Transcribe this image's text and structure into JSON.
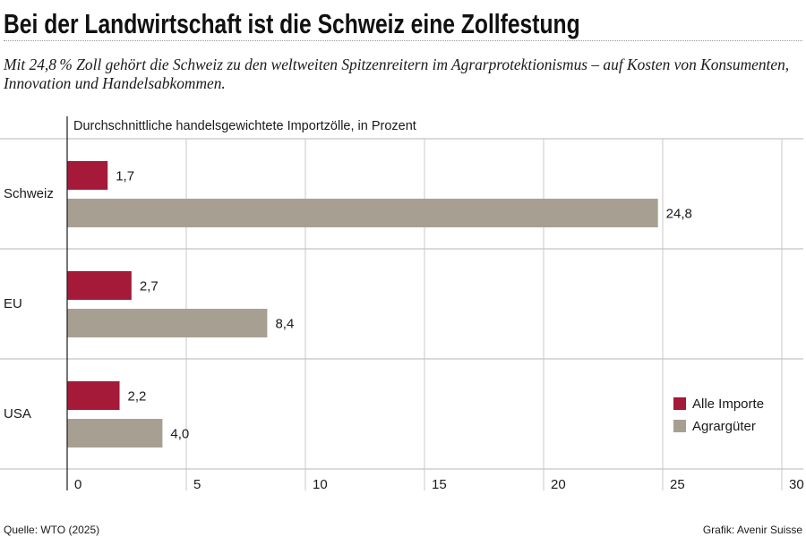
{
  "chart_data": {
    "type": "bar",
    "title": "Bei der Landwirtschaft ist die Schweiz eine Zollfestung",
    "subtitle": "Mit 24,8 % Zoll gehört die Schweiz zu den weltweiten Spitzenreitern im Agrarprotektionismus – auf Kosten von Konsumenten, Innovation und Handelsabkommen.",
    "xlabel": "Durchschnittliche handelsgewichtete Importzölle, in Prozent",
    "categories": [
      "Schweiz",
      "EU",
      "USA"
    ],
    "series": [
      {
        "name": "Alle Importe",
        "color": "#a51939",
        "values": [
          1.7,
          2.7,
          2.2
        ],
        "labels": [
          "1,7",
          "2,7",
          "2,2"
        ]
      },
      {
        "name": "Agrargüter",
        "color": "#a89f93",
        "values": [
          24.8,
          8.4,
          4.0
        ],
        "labels": [
          "24,8",
          "8,4",
          "4,0"
        ]
      }
    ],
    "xlim": [
      0,
      30
    ],
    "xticks": [
      0,
      5,
      10,
      15,
      20,
      25,
      30
    ],
    "grid": true,
    "legend": "bottom-right",
    "source": "Quelle: WTO (2025)",
    "credit": "Grafik: Avenir Suisse"
  }
}
